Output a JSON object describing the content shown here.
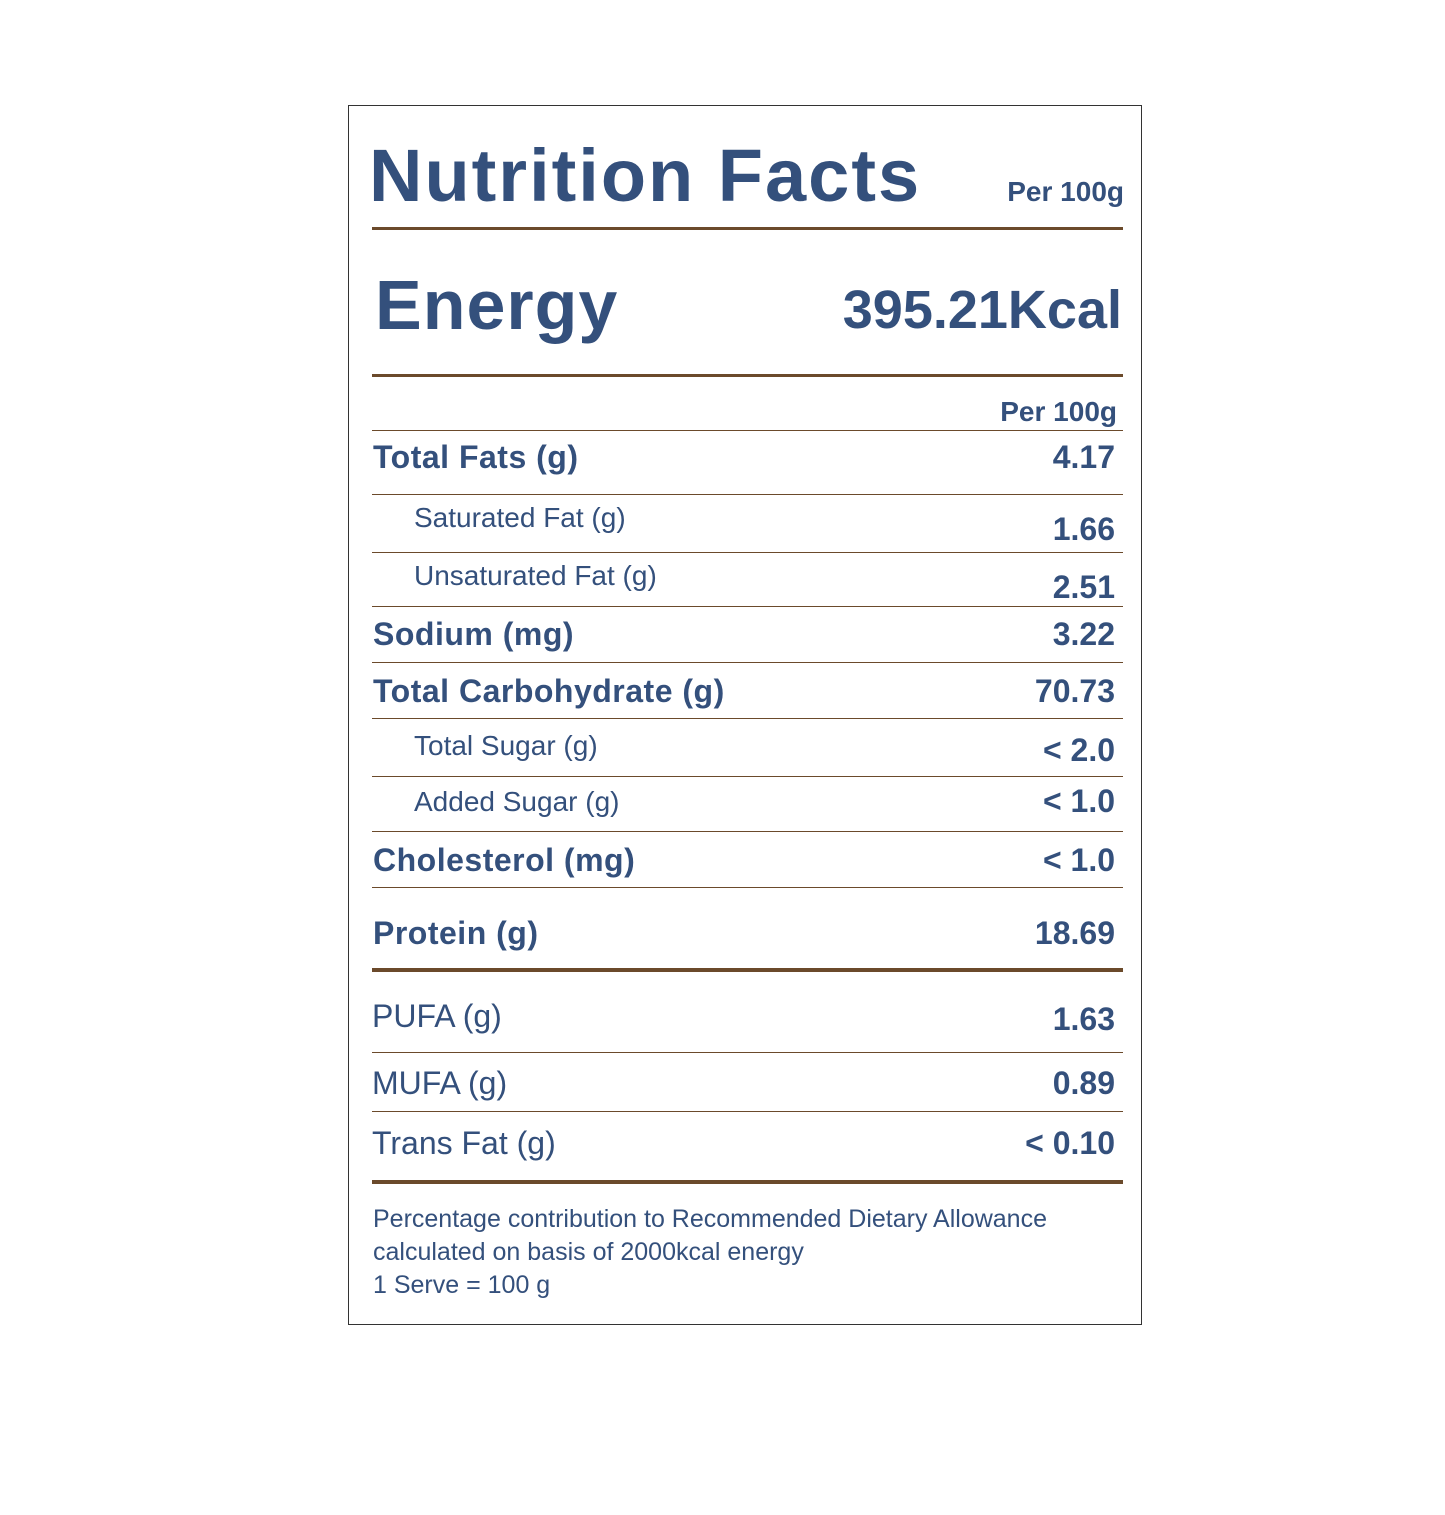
{
  "header": {
    "title": "Nutrition Facts",
    "per": "Per 100g"
  },
  "energy": {
    "label": "Energy",
    "value": "395.21Kcal"
  },
  "table": {
    "column_header": "Per 100g",
    "rows": [
      {
        "label": "Total Fats (g)",
        "value": "4.17"
      },
      {
        "label": "Saturated Fat (g)",
        "value": "1.66"
      },
      {
        "label": "Unsaturated Fat (g)",
        "value": "2.51"
      },
      {
        "label": "Sodium (mg)",
        "value": "3.22"
      },
      {
        "label": "Total Carbohydrate (g)",
        "value": "70.73"
      },
      {
        "label": "Total Sugar (g)",
        "value": "< 2.0"
      },
      {
        "label": "Added Sugar (g)",
        "value": "< 1.0"
      },
      {
        "label": "Cholesterol (mg)",
        "value": "< 1.0"
      },
      {
        "label": "Protein (g)",
        "value": "18.69"
      }
    ],
    "fat_rows": [
      {
        "label": "PUFA (g)",
        "value": "1.63"
      },
      {
        "label": "MUFA (g)",
        "value": "0.89"
      },
      {
        "label": "Trans Fat (g)",
        "value": "< 0.10"
      }
    ]
  },
  "footnote": {
    "line1": "Percentage contribution to Recommended Dietary Allowance",
    "line2": "calculated on basis of 2000kcal energy",
    "line3": "1 Serve = 100 g"
  },
  "colors": {
    "text": "#34507c",
    "rule": "#6b4a2b",
    "border": "#333333"
  }
}
